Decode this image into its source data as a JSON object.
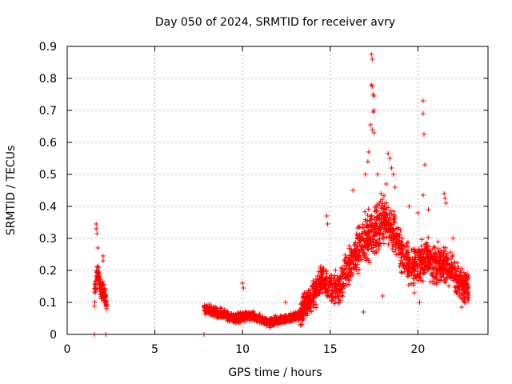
{
  "chart_data": {
    "type": "scatter",
    "title": "Day 050 of 2024, SRMTID for receiver avry",
    "xlabel": "GPS time / hours",
    "ylabel": "SRMTID / TECUs",
    "xlim": [
      0,
      24
    ],
    "ylim": [
      0,
      0.9
    ],
    "xticks": [
      0,
      5,
      10,
      15,
      20
    ],
    "yticks": [
      0,
      0.1,
      0.2,
      0.3,
      0.4,
      0.5,
      0.6,
      0.7,
      0.8,
      0.9
    ],
    "xtick_labels": [
      "0",
      "5",
      "10",
      "15",
      "20"
    ],
    "ytick_labels": [
      "0",
      "0.1",
      "0.2",
      "0.3",
      "0.4",
      "0.5",
      "0.6",
      "0.7",
      "0.8",
      "0.9"
    ],
    "grid": true,
    "marker": "plus",
    "color": "#ff0000",
    "series": [
      {
        "name": "SRMTID",
        "segments": [
          {
            "x0": 1.55,
            "x1": 2.25,
            "base": [
              [
                1.55,
                0.12
              ],
              [
                1.7,
                0.2
              ],
              [
                1.9,
                0.15
              ],
              [
                2.1,
                0.13
              ],
              [
                2.25,
                0.1
              ]
            ],
            "spread": 0.06,
            "n": 120
          },
          {
            "x0": 7.8,
            "x1": 13.3,
            "base": [
              [
                7.8,
                0.08
              ],
              [
                8.5,
                0.07
              ],
              [
                9.5,
                0.05
              ],
              [
                10.5,
                0.06
              ],
              [
                11.5,
                0.035
              ],
              [
                12.5,
                0.05
              ],
              [
                13.3,
                0.06
              ]
            ],
            "spread": 0.03,
            "n": 900
          },
          {
            "x0": 13.3,
            "x1": 22.9,
            "base": [
              [
                13.3,
                0.07
              ],
              [
                14.0,
                0.12
              ],
              [
                14.5,
                0.17
              ],
              [
                15.0,
                0.14
              ],
              [
                15.5,
                0.15
              ],
              [
                16.0,
                0.2
              ],
              [
                16.5,
                0.27
              ],
              [
                17.0,
                0.3
              ],
              [
                17.5,
                0.32
              ],
              [
                18.0,
                0.36
              ],
              [
                18.5,
                0.33
              ],
              [
                19.0,
                0.27
              ],
              [
                19.5,
                0.22
              ],
              [
                20.0,
                0.22
              ],
              [
                20.5,
                0.24
              ],
              [
                21.0,
                0.22
              ],
              [
                21.5,
                0.22
              ],
              [
                22.0,
                0.2
              ],
              [
                22.5,
                0.15
              ],
              [
                22.9,
                0.14
              ]
            ],
            "spread": 0.09,
            "n": 1500
          }
        ],
        "peaks": [
          {
            "x": 1.65,
            "y": 0.345
          },
          {
            "x": 1.65,
            "y": 0.33
          },
          {
            "x": 1.7,
            "y": 0.315
          },
          {
            "x": 1.75,
            "y": 0.27
          },
          {
            "x": 2.05,
            "y": 0.245
          },
          {
            "x": 2.05,
            "y": 0.23
          },
          {
            "x": 2.2,
            "y": 0.0
          },
          {
            "x": 1.55,
            "y": 0.0
          },
          {
            "x": 7.8,
            "y": 0.0
          },
          {
            "x": 10.0,
            "y": 0.16
          },
          {
            "x": 10.05,
            "y": 0.145
          },
          {
            "x": 12.45,
            "y": 0.1
          },
          {
            "x": 14.8,
            "y": 0.37
          },
          {
            "x": 14.85,
            "y": 0.345
          },
          {
            "x": 17.35,
            "y": 0.875
          },
          {
            "x": 17.4,
            "y": 0.86
          },
          {
            "x": 17.35,
            "y": 0.78
          },
          {
            "x": 17.4,
            "y": 0.775
          },
          {
            "x": 17.45,
            "y": 0.75
          },
          {
            "x": 17.5,
            "y": 0.745
          },
          {
            "x": 17.5,
            "y": 0.7
          },
          {
            "x": 17.45,
            "y": 0.695
          },
          {
            "x": 17.3,
            "y": 0.655
          },
          {
            "x": 17.4,
            "y": 0.64
          },
          {
            "x": 17.5,
            "y": 0.63
          },
          {
            "x": 17.2,
            "y": 0.57
          },
          {
            "x": 17.15,
            "y": 0.54
          },
          {
            "x": 17.0,
            "y": 0.5
          },
          {
            "x": 17.7,
            "y": 0.5
          },
          {
            "x": 18.3,
            "y": 0.565
          },
          {
            "x": 18.4,
            "y": 0.55
          },
          {
            "x": 18.5,
            "y": 0.52
          },
          {
            "x": 18.6,
            "y": 0.5
          },
          {
            "x": 18.2,
            "y": 0.47
          },
          {
            "x": 18.7,
            "y": 0.46
          },
          {
            "x": 17.9,
            "y": 0.44
          },
          {
            "x": 16.3,
            "y": 0.45
          },
          {
            "x": 20.3,
            "y": 0.73
          },
          {
            "x": 20.3,
            "y": 0.69
          },
          {
            "x": 20.35,
            "y": 0.625
          },
          {
            "x": 20.4,
            "y": 0.53
          },
          {
            "x": 20.3,
            "y": 0.435
          },
          {
            "x": 20.6,
            "y": 0.39
          },
          {
            "x": 21.5,
            "y": 0.44
          },
          {
            "x": 21.55,
            "y": 0.425
          },
          {
            "x": 21.6,
            "y": 0.41
          },
          {
            "x": 19.5,
            "y": 0.4
          },
          {
            "x": 20.0,
            "y": 0.38
          },
          {
            "x": 22.0,
            "y": 0.3
          },
          {
            "x": 16.9,
            "y": 0.07
          },
          {
            "x": 18.0,
            "y": 0.12
          },
          {
            "x": 19.8,
            "y": 0.13
          },
          {
            "x": 20.1,
            "y": 0.1
          },
          {
            "x": 22.5,
            "y": 0.085
          },
          {
            "x": 22.7,
            "y": 0.1
          }
        ]
      }
    ]
  }
}
